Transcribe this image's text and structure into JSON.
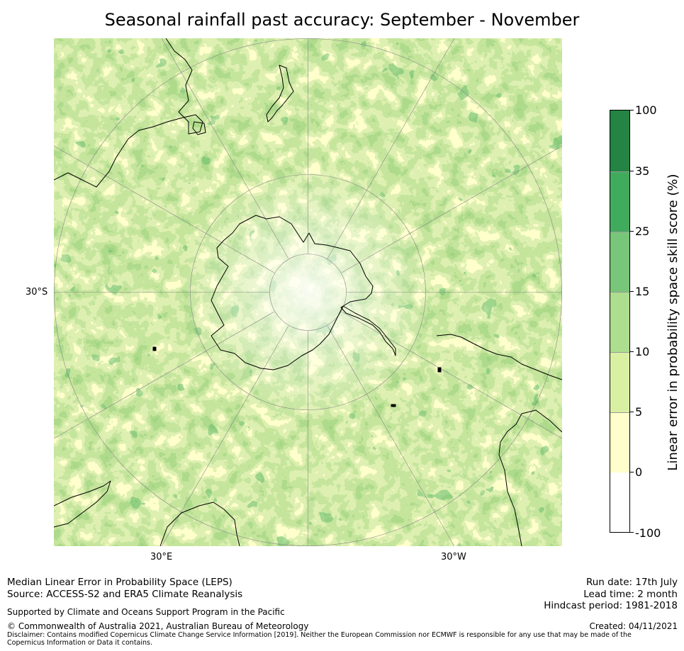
{
  "title": "Seasonal rainfall past accuracy: September - November",
  "map": {
    "lon_labels": [
      "30°E",
      "30°W"
    ],
    "lat_labels": [
      "30°S"
    ]
  },
  "colorbar": {
    "title": "Linear error in probability space skill score (%)",
    "tick_labels": [
      "100",
      "35",
      "25",
      "15",
      "10",
      "5",
      "0",
      "-100"
    ],
    "colors": [
      "#ffffff",
      "#ffffcc",
      "#d9f0a3",
      "#addd8e",
      "#78c679",
      "#41ab5d",
      "#238443"
    ]
  },
  "footer": {
    "left_line1": "Median Linear Error in Probability Space (LEPS)",
    "left_line2": "Source: ACCESS-S2 and ERA5 Climate Reanalysis",
    "support": "Supported by Climate and Oceans Support Program in the Pacific",
    "copyright": "© Commonwealth of Australia 2021, Australian Bureau of Meteorology",
    "disclaimer": "Disclaimer: Contains modified Copernicus Climate Change Service Information [2019]. Neither the European Commission nor ECMWF is responsible for any use that may be made of the Copernicus Information or Data it contains.",
    "run_date": "Run date: 17th July",
    "lead_time": "Lead time: 2 month",
    "hindcast": "Hindcast period: 1981-2018",
    "created": "Created: 04/11/2021"
  }
}
